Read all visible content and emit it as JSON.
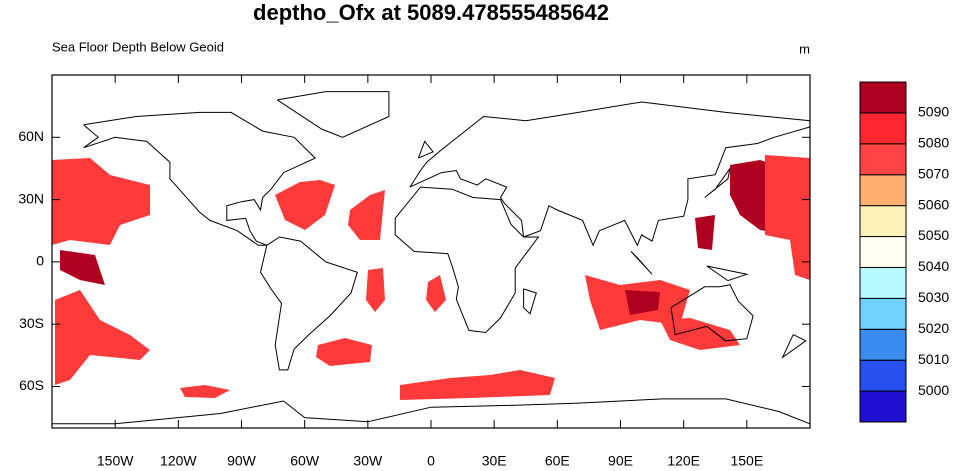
{
  "title": "deptho_Ofx at 5089.478555485642",
  "left_string": "Sea Floor Depth Below Geoid",
  "right_string": "m",
  "map": {
    "xlim": [
      -180,
      180
    ],
    "ylim": [
      -80,
      90
    ],
    "xticks": [
      {
        "value": -150,
        "label": "150W"
      },
      {
        "value": -120,
        "label": "120W"
      },
      {
        "value": -90,
        "label": "90W"
      },
      {
        "value": -60,
        "label": "60W"
      },
      {
        "value": -30,
        "label": "30W"
      },
      0,
      {
        "value": 30,
        "label": "30E"
      },
      {
        "value": 60,
        "label": "60E"
      },
      {
        "value": 90,
        "label": "90E"
      },
      {
        "value": 120,
        "label": "120E"
      },
      {
        "value": 150,
        "label": "150E"
      }
    ],
    "yticks": [
      {
        "value": -60,
        "label": "60S"
      },
      {
        "value": -30,
        "label": "30S"
      },
      0,
      {
        "value": 30,
        "label": "30N"
      },
      {
        "value": 60,
        "label": "60N"
      }
    ]
  },
  "colorbar": {
    "levels": [
      5000,
      5010,
      5020,
      5030,
      5040,
      5050,
      5060,
      5070,
      5080,
      5090
    ],
    "colors": [
      "#2010d0",
      "#2850f0",
      "#3c8cf0",
      "#70d0ff",
      "#b8f8ff",
      "#fffff0",
      "#fff0b8",
      "#ffb070",
      "#ff4444",
      "#ff2830",
      "#b00020"
    ]
  }
}
